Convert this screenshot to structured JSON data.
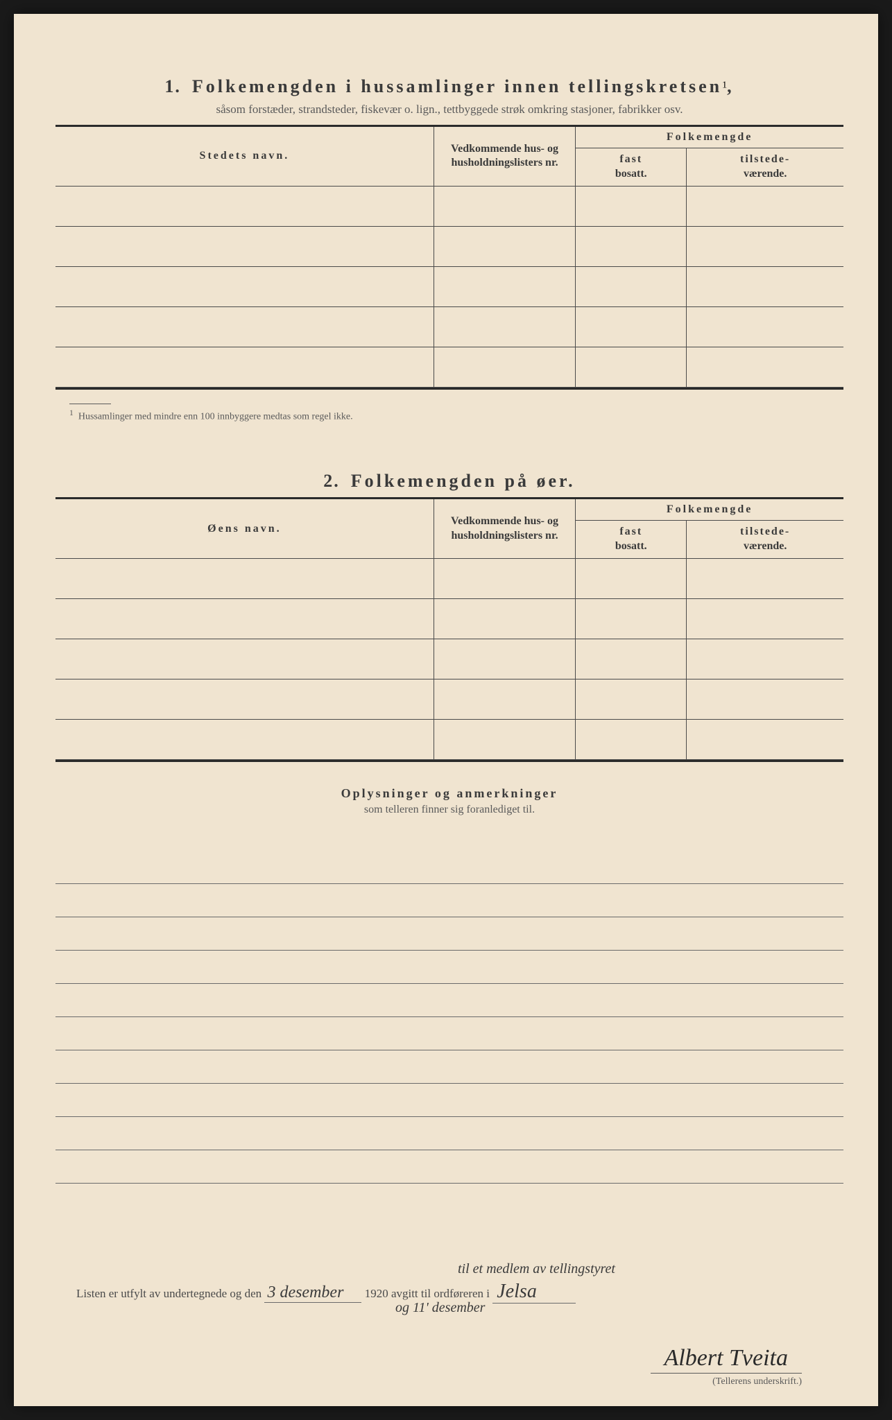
{
  "section1": {
    "number": "1.",
    "title": "Folkemengden i hussamlinger innen tellingskretsen",
    "title_sup": "1",
    "title_punct": ",",
    "subtitle": "såsom forstæder, strandsteder, fiskevær o. lign., tettbyggede strøk omkring stasjoner, fabrikker osv.",
    "headers": {
      "name": "Stedets navn.",
      "list": "Vedkommende hus- og husholdningslisters nr.",
      "folk": "Folkemengde",
      "fast_b": "fast",
      "fast_s": "bosatt.",
      "til_b": "tilstede-",
      "til_s": "værende."
    },
    "footnote_sup": "1",
    "footnote": "Hussamlinger med mindre enn 100 innbyggere medtas som regel ikke."
  },
  "section2": {
    "number": "2.",
    "title": "Folkemengden på øer.",
    "headers": {
      "name": "Øens navn.",
      "list": "Vedkommende hus- og husholdningslisters nr.",
      "folk": "Folkemengde",
      "fast_b": "fast",
      "fast_s": "bosatt.",
      "til_b": "tilstede-",
      "til_s": "værende."
    }
  },
  "notes": {
    "title": "Oplysninger og anmerkninger",
    "subtitle": "som telleren finner sig foranlediget til."
  },
  "closing": {
    "pre": "Listen er utfylt av undertegnede og den",
    "date_hw": "3 desember",
    "year": "1920 avgitt til ordføreren i",
    "place_hw": "Jelsa",
    "hw_above": "til et medlem av tellingstyret",
    "hw_below": "og 11' desember",
    "signature": "Albert Tveita",
    "sig_label": "(Tellerens underskrift.)"
  }
}
